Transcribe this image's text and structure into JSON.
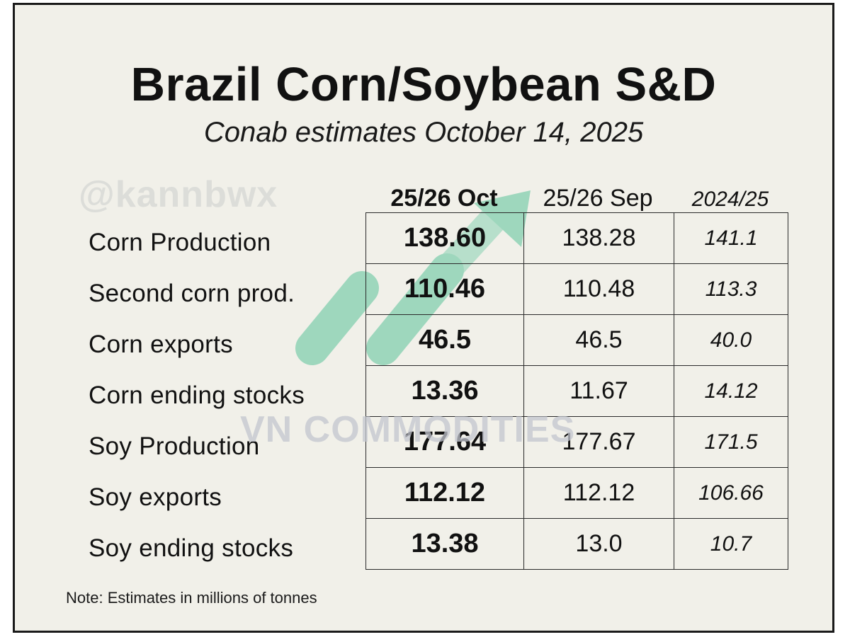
{
  "colors": {
    "background": "#f1f0e9",
    "text": "#111111",
    "border": "#1a1a1a",
    "logo_green": "#5cc49a",
    "watermark": "#c3c6cf"
  },
  "watermarks": {
    "handle": "@kannbwx",
    "brand": "VN COMMODITIES"
  },
  "chart_data": {
    "type": "table",
    "title": "Brazil Corn/Soybean S&D",
    "subtitle": "Conab estimates October 14, 2025",
    "columns": [
      "25/26 Oct",
      "25/26 Sep",
      "2024/25"
    ],
    "rows": [
      {
        "label": "Corn Production",
        "values": [
          "138.60",
          "138.28",
          "141.1"
        ]
      },
      {
        "label": "Second corn prod.",
        "values": [
          "110.46",
          "110.48",
          "113.3"
        ]
      },
      {
        "label": "Corn exports",
        "values": [
          "46.5",
          "46.5",
          "40.0"
        ]
      },
      {
        "label": "Corn ending stocks",
        "values": [
          "13.36",
          "11.67",
          "14.12"
        ]
      },
      {
        "label": "Soy Production",
        "values": [
          "177.64",
          "177.67",
          "171.5"
        ]
      },
      {
        "label": "Soy exports",
        "values": [
          "112.12",
          "112.12",
          "106.66"
        ]
      },
      {
        "label": "Soy ending stocks",
        "values": [
          "13.38",
          "13.0",
          "10.7"
        ]
      }
    ],
    "note": "Note: Estimates in millions of tonnes"
  }
}
